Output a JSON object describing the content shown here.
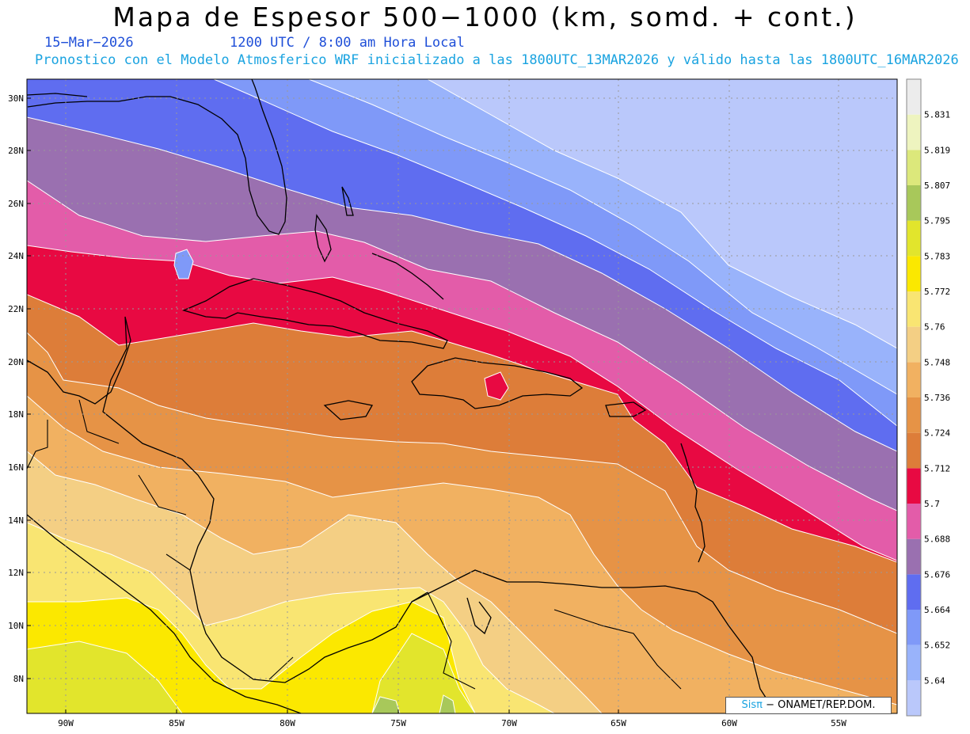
{
  "header": {
    "title": "Mapa de Espesor 500−1000 (km, somd. + cont.)",
    "date": "15−Mar−2026",
    "time": "1200 UTC / 8:00 am Hora Local",
    "description": "Pronostico con el Modelo Atmosferico WRF inicializado a las 1800UTC_13MAR2026 y válido hasta las  1800UTC_16MAR2026"
  },
  "map": {
    "region": "Caribbean / Gulf of Mexico",
    "lat_labels": [
      "30N",
      "28N",
      "26N",
      "24N",
      "22N",
      "20N",
      "18N",
      "16N",
      "14N",
      "12N",
      "10N",
      "8N"
    ],
    "lon_labels": [
      "90W",
      "85W",
      "80W",
      "75W",
      "70W",
      "65W",
      "60W",
      "55W"
    ],
    "lon_range": [
      -92,
      -52.5
    ],
    "lat_range": [
      6.8,
      30.7
    ]
  },
  "colorbar": {
    "levels": [
      "5.64",
      "5.652",
      "5.664",
      "5.676",
      "5.688",
      "5.7",
      "5.712",
      "5.724",
      "5.736",
      "5.748",
      "5.76",
      "5.772",
      "5.783",
      "5.795",
      "5.807",
      "5.819",
      "5.831"
    ],
    "colors": [
      "#bac8fb",
      "#99b3fb",
      "#7f99f8",
      "#5f6df0",
      "#9a70b0",
      "#e35ca9",
      "#e80942",
      "#dd7d39",
      "#e69346",
      "#f1b161",
      "#f4cf84",
      "#f9e572",
      "#fbe800",
      "#e2e52c",
      "#a8c85a",
      "#dce87b",
      "#eef4bf",
      "#ececec"
    ]
  },
  "credit": {
    "logo": "Sisπ",
    "text": " − ONAMET/REP.DOM."
  }
}
